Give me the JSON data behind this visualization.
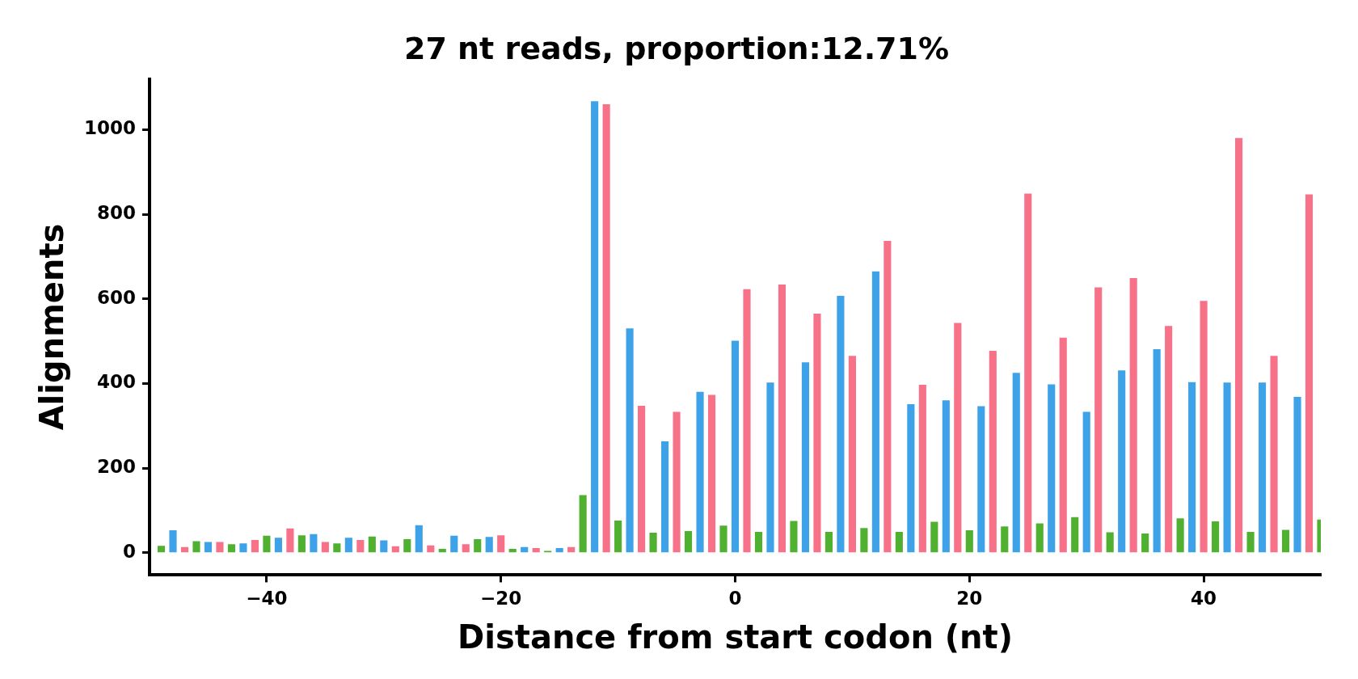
{
  "chart_data": {
    "type": "bar",
    "title": "27 nt reads, proportion:12.71%",
    "xlabel": "Distance from start codon (nt)",
    "ylabel": "Alignments",
    "xlim": [
      -50,
      50
    ],
    "xticks": [
      -40,
      -20,
      0,
      20,
      40
    ],
    "ylim": [
      -53,
      1120
    ],
    "yticks": [
      0,
      200,
      400,
      600,
      800,
      1000
    ],
    "series": [
      {
        "color": "#50b131",
        "x": [
          -49,
          -46,
          -43,
          -40,
          -37,
          -34,
          -31,
          -28,
          -25,
          -22,
          -19,
          -16,
          -13,
          -10,
          -7,
          -4,
          -1,
          2,
          5,
          8,
          11,
          14,
          17,
          20,
          23,
          26,
          29,
          32,
          35,
          38,
          41,
          44,
          47,
          50
        ],
        "values": [
          16,
          27,
          20,
          40,
          41,
          22,
          38,
          32,
          9,
          32,
          9,
          4,
          136,
          76,
          47,
          51,
          64,
          49,
          75,
          49,
          58,
          49,
          73,
          53,
          62,
          69,
          84,
          48,
          45,
          81,
          74,
          49,
          54,
          78
        ]
      },
      {
        "color": "#3da2e8",
        "x": [
          -48,
          -45,
          -42,
          -39,
          -36,
          -33,
          -30,
          -27,
          -24,
          -21,
          -18,
          -15,
          -12,
          -9,
          -6,
          -3,
          0,
          3,
          6,
          9,
          12,
          15,
          18,
          21,
          24,
          27,
          30,
          33,
          36,
          39,
          42,
          45,
          48
        ],
        "values": [
          53,
          25,
          22,
          35,
          44,
          35,
          29,
          65,
          40,
          37,
          13,
          11,
          1067,
          530,
          263,
          380,
          501,
          402,
          450,
          607,
          665,
          351,
          360,
          346,
          425,
          398,
          333,
          431,
          481,
          403,
          402,
          402,
          368
        ]
      },
      {
        "color": "#f77189",
        "x": [
          -47,
          -44,
          -41,
          -38,
          -35,
          -32,
          -29,
          -26,
          -23,
          -20,
          -17,
          -14,
          -11,
          -8,
          -5,
          -2,
          1,
          4,
          7,
          10,
          13,
          16,
          19,
          22,
          25,
          28,
          31,
          34,
          37,
          40,
          43,
          46,
          49
        ],
        "values": [
          13,
          25,
          30,
          57,
          25,
          30,
          15,
          17,
          20,
          41,
          11,
          13,
          1060,
          347,
          333,
          373,
          623,
          634,
          565,
          465,
          737,
          397,
          543,
          477,
          849,
          508,
          627,
          649,
          536,
          595,
          980,
          465,
          847
        ]
      }
    ]
  }
}
